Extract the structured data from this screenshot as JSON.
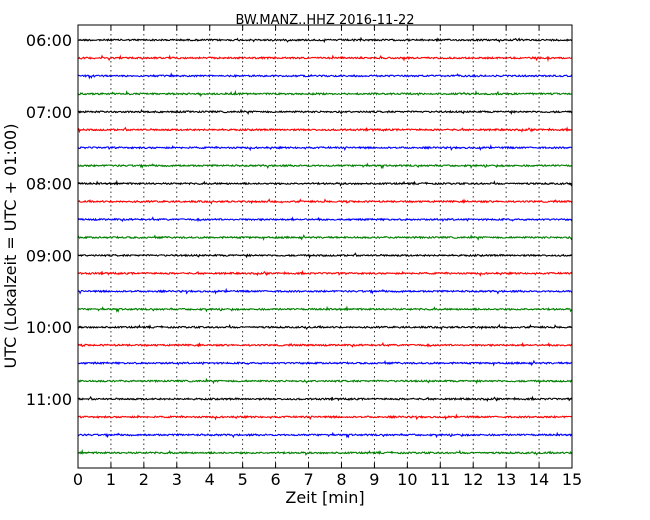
{
  "chart_data": {
    "type": "line",
    "title": "BW.MANZ..HHZ 2016-11-22",
    "xlabel": "Zeit  [min]",
    "ylabel": "UTC (Lokalzeit = UTC + 01:00)",
    "xlim": [
      0,
      15
    ],
    "x_ticks": [
      "0",
      "1",
      "2",
      "3",
      "4",
      "5",
      "6",
      "7",
      "8",
      "9",
      "10",
      "11",
      "12",
      "13",
      "14",
      "15"
    ],
    "y_ticks": [
      "06:00",
      "07:00",
      "08:00",
      "09:00",
      "10:00",
      "11:00"
    ],
    "grid": "vertical dotted",
    "trace_interval_min": 15,
    "trace_colors": [
      "#000000",
      "#ff0000",
      "#0000ff",
      "#008000"
    ],
    "traces": [
      {
        "start": "06:00",
        "color": "#000000"
      },
      {
        "start": "06:15",
        "color": "#ff0000"
      },
      {
        "start": "06:30",
        "color": "#0000ff"
      },
      {
        "start": "06:45",
        "color": "#008000"
      },
      {
        "start": "07:00",
        "color": "#000000"
      },
      {
        "start": "07:15",
        "color": "#ff0000"
      },
      {
        "start": "07:30",
        "color": "#0000ff"
      },
      {
        "start": "07:45",
        "color": "#008000"
      },
      {
        "start": "08:00",
        "color": "#000000"
      },
      {
        "start": "08:15",
        "color": "#ff0000"
      },
      {
        "start": "08:30",
        "color": "#0000ff"
      },
      {
        "start": "08:45",
        "color": "#008000"
      },
      {
        "start": "09:00",
        "color": "#000000"
      },
      {
        "start": "09:15",
        "color": "#ff0000"
      },
      {
        "start": "09:30",
        "color": "#0000ff"
      },
      {
        "start": "09:45",
        "color": "#008000"
      },
      {
        "start": "10:00",
        "color": "#000000"
      },
      {
        "start": "10:15",
        "color": "#ff0000"
      },
      {
        "start": "10:30",
        "color": "#0000ff"
      },
      {
        "start": "10:45",
        "color": "#008000"
      },
      {
        "start": "11:00",
        "color": "#000000"
      },
      {
        "start": "11:15",
        "color": "#ff0000"
      },
      {
        "start": "11:30",
        "color": "#0000ff"
      },
      {
        "start": "11:45",
        "color": "#008000"
      }
    ]
  }
}
